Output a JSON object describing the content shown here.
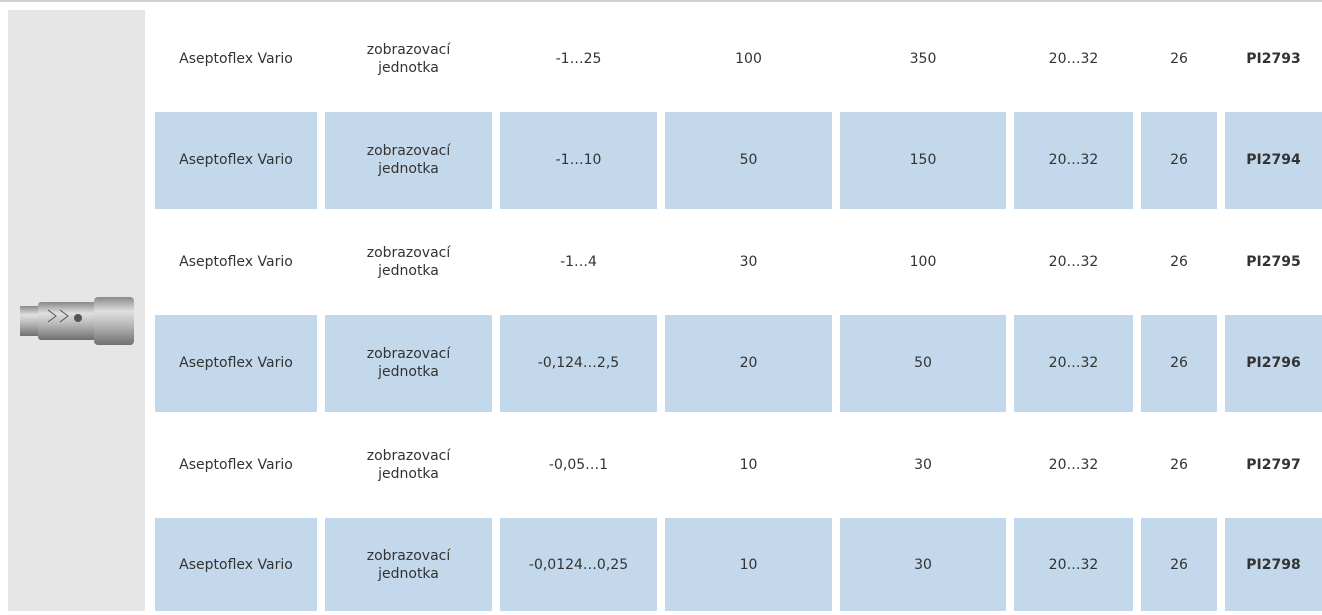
{
  "table": {
    "rows": [
      [
        "Aseptoflex Vario",
        "zobrazovací jednotka",
        "-1…25",
        "100",
        "350",
        "20…32",
        "26",
        "PI2793"
      ],
      [
        "Aseptoflex Vario",
        "zobrazovací jednotka",
        "-1…10",
        "50",
        "150",
        "20…32",
        "26",
        "PI2794"
      ],
      [
        "Aseptoflex Vario",
        "zobrazovací jednotka",
        "-1…4",
        "30",
        "100",
        "20…32",
        "26",
        "PI2795"
      ],
      [
        "Aseptoflex Vario",
        "zobrazovací jednotka",
        "-0,124…2,5",
        "20",
        "50",
        "20…32",
        "26",
        "PI2796"
      ],
      [
        "Aseptoflex Vario",
        "zobrazovací jednotka",
        "-0,05…1",
        "10",
        "30",
        "20…32",
        "26",
        "PI2797"
      ],
      [
        "Aseptoflex Vario",
        "zobrazovací jednotka",
        "-0,0124…0,25",
        "10",
        "30",
        "20…32",
        "26",
        "PI2798"
      ]
    ]
  }
}
